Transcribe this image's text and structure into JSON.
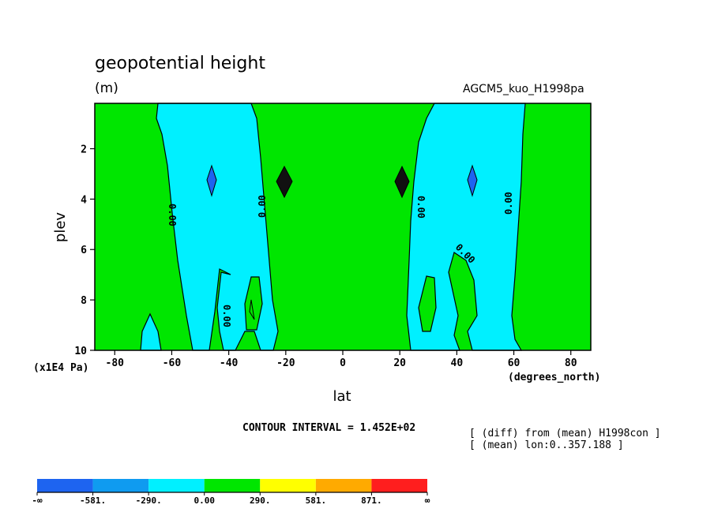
{
  "chart_data": {
    "type": "heatmap",
    "title": "geopotential height",
    "units": "(m)",
    "run_label": "AGCM5_kuo_H1998pa",
    "xlabel": "lat",
    "x_unit": "(degrees_north)",
    "ylabel": "plev",
    "y_unit": "(x1E4 Pa)",
    "xlim": [
      -87,
      87
    ],
    "ylim": [
      10,
      0.2
    ],
    "x_ticks": [
      -80,
      -60,
      -40,
      -20,
      0,
      20,
      40,
      60,
      80
    ],
    "x_tick_labels": [
      "-80",
      "-60",
      "-40",
      "-20",
      "0",
      "20",
      "40",
      "60",
      "80"
    ],
    "y_ticks": [
      2,
      4,
      6,
      8,
      10
    ],
    "y_tick_labels": [
      "2",
      "4",
      "6",
      "8",
      "10"
    ],
    "contour_interval_text": "CONTOUR INTERVAL = 1.452E+02",
    "contour_labels": [
      "0.00",
      "0.00",
      "0.00",
      "0.00",
      "0.00",
      "0.00",
      "0.00"
    ],
    "notes": [
      "[ (diff) from (mean) H1998con ]",
      "[ (mean) lon:0..357.188 ]"
    ],
    "colorbar": {
      "colors": [
        "#1e64f0",
        "#0f9bf0",
        "#00f0ff",
        "#00e600",
        "#ffff00",
        "#ffaa00",
        "#ff1e1e"
      ],
      "labels": [
        "-∞",
        "-581.",
        "-290.",
        "0.00",
        "290.",
        "581.",
        "871.",
        "∞"
      ]
    },
    "regions": [
      {
        "level": "0 to 290",
        "color": "#00e600",
        "desc": "background"
      },
      {
        "level": "-290 to 0",
        "color": "#00f0ff",
        "desc": "southern band near -50 to -30 lat"
      },
      {
        "level": "-290 to 0",
        "color": "#00f0ff",
        "desc": "northern band near 30 to 50 lat"
      }
    ]
  }
}
